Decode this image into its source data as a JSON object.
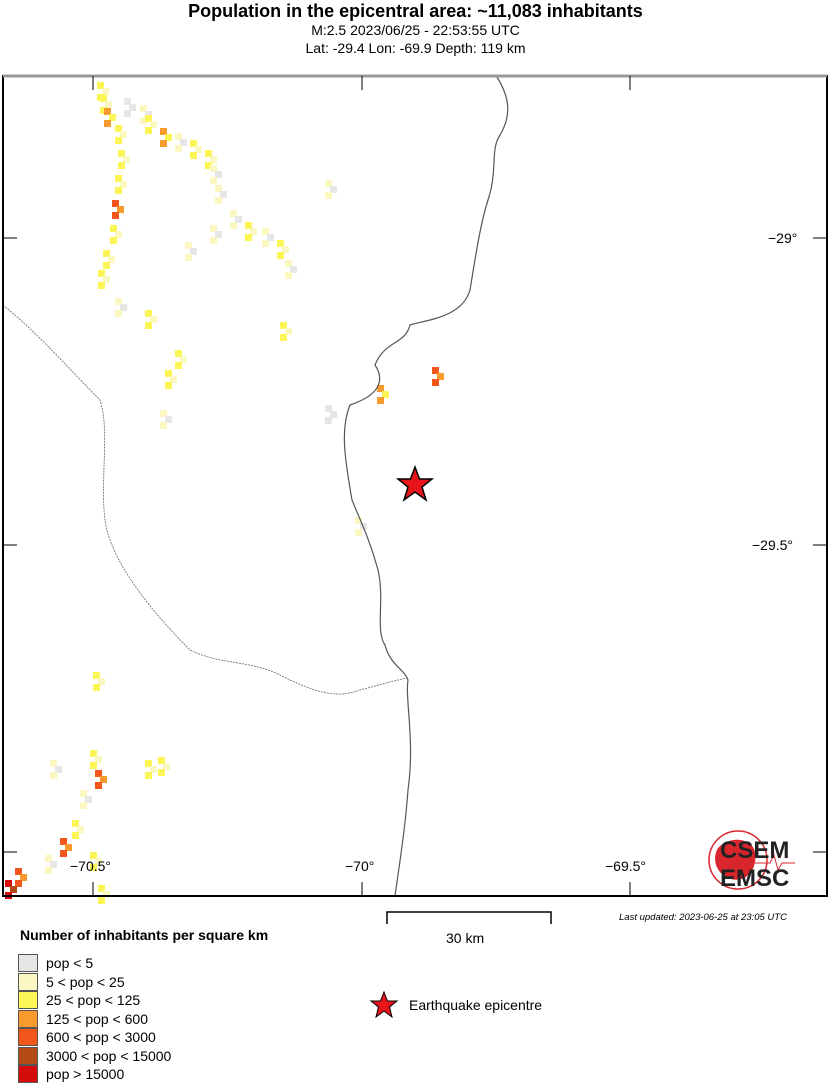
{
  "title": "Population in the epicentral area: ~11,083 inhabitants",
  "subtitle1": "M:2.5 2023/06/25 - 22:53:55 UTC",
  "subtitle2": "Lat: -29.4 Lon: -69.9 Depth: 119 km",
  "map": {
    "lon_ticks": [
      "−70.5°",
      "−70°",
      "−69.5°"
    ],
    "lat_ticks": [
      "−29°",
      "−29.5°"
    ],
    "epicentre": {
      "lat": -29.4,
      "lon": -69.9,
      "color": "#e8141c"
    }
  },
  "scale_bar": "30 km",
  "last_updated": "Last updated: 2023-06-25 at 23:05 UTC",
  "logo": {
    "top": "CSEM",
    "bottom": "EMSC",
    "color": "#d9262c"
  },
  "legend": {
    "title": "Number of inhabitants per square km",
    "items": [
      {
        "label": "pop < 5",
        "color": "#e6e6e6"
      },
      {
        "label": "5 < pop < 25",
        "color": "#fbf7c0"
      },
      {
        "label": "25 < pop < 125",
        "color": "#fbf556"
      },
      {
        "label": "125 < pop < 600",
        "color": "#f99a2e"
      },
      {
        "label": "600 < pop < 3000",
        "color": "#f2561b"
      },
      {
        "label": "3000 < pop < 15000",
        "color": "#b44a15"
      },
      {
        "label": "pop > 15000",
        "color": "#d60c0c"
      }
    ],
    "epicentre_label": "Earthquake epicentre"
  }
}
